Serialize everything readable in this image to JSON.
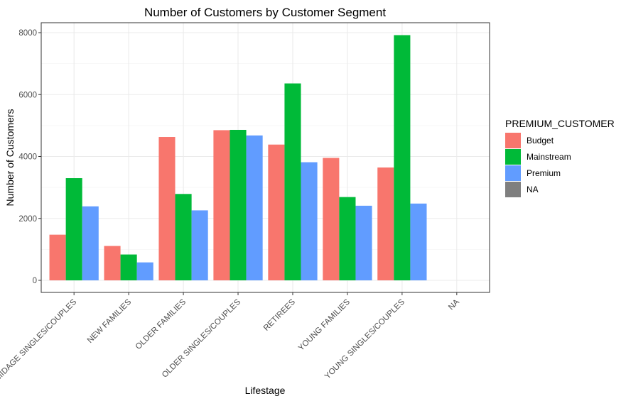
{
  "chart_data": {
    "type": "bar",
    "title": "Number of Customers by Customer Segment",
    "xlabel": "Lifestage",
    "ylabel": "Number of Customers",
    "categories": [
      "MIDAGE SINGLES/COUPLES",
      "NEW FAMILIES",
      "OLDER FAMILIES",
      "OLDER SINGLES/COUPLES",
      "RETIREES",
      "YOUNG FAMILIES",
      "YOUNG SINGLES/COUPLES",
      "NA"
    ],
    "series": [
      {
        "name": "Budget",
        "color": "#F8766D",
        "values": [
          1475,
          1110,
          4630,
          4850,
          4385,
          3955,
          3645,
          null
        ]
      },
      {
        "name": "Mainstream",
        "color": "#00BA38",
        "values": [
          3300,
          835,
          2790,
          4860,
          6360,
          2690,
          7920,
          null
        ]
      },
      {
        "name": "Premium",
        "color": "#619CFF",
        "values": [
          2390,
          580,
          2260,
          4680,
          3815,
          2410,
          2480,
          null
        ]
      },
      {
        "name": "NA",
        "color": "#7F7F7F",
        "values": [
          null,
          null,
          null,
          null,
          null,
          null,
          null,
          null
        ]
      }
    ],
    "ylim": [
      0,
      8000
    ],
    "yticks": [
      0,
      2000,
      4000,
      6000,
      8000
    ],
    "yticklabels": [
      "0",
      "2000",
      "4000",
      "6000",
      "8000"
    ],
    "grid": true,
    "legend": {
      "title": "PREMIUM_CUSTOMER",
      "position": "right"
    }
  }
}
